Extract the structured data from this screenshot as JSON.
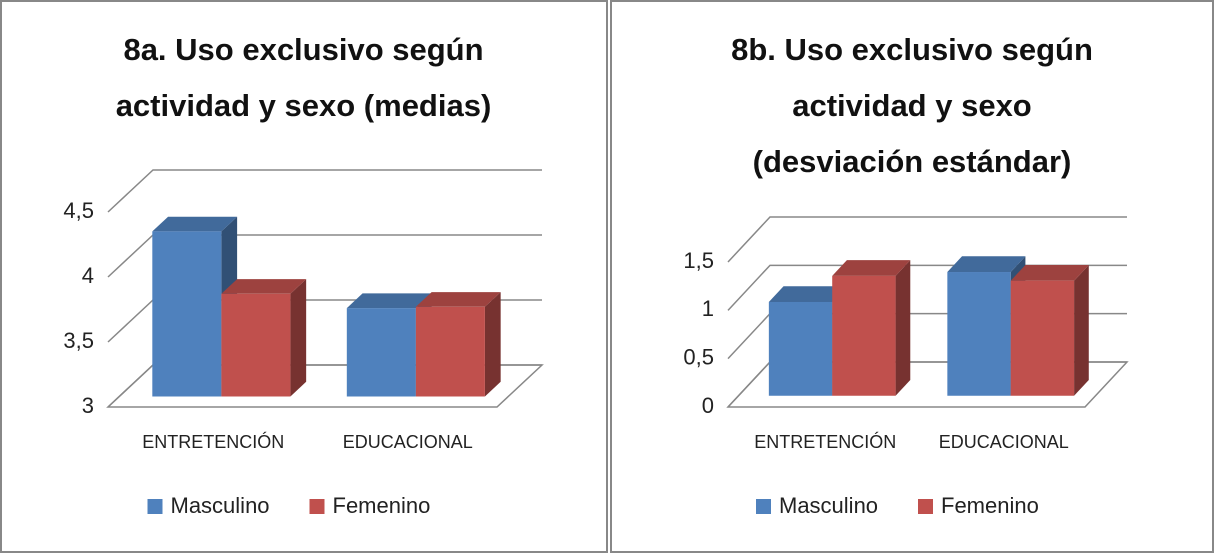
{
  "chart_data": [
    {
      "type": "bar3d",
      "title": "8a. Uso exclusivo según actividad y sexo (medias)",
      "categories": [
        "ENTRETENCIÓN",
        "EDUCACIONAL"
      ],
      "series": [
        {
          "name": "Masculino",
          "color": "#4f81bd",
          "values": [
            4.27,
            3.68
          ]
        },
        {
          "name": "Femenino",
          "color": "#c0504d",
          "values": [
            3.79,
            3.69
          ]
        }
      ],
      "ylim": [
        3,
        4.5
      ],
      "yticks": [
        3,
        {
          "value": 3.5,
          "label": "3,5"
        },
        4,
        {
          "value": 4.5,
          "label": "4,5"
        }
      ],
      "grid": true,
      "legend": "bottom"
    },
    {
      "type": "bar3d",
      "title": "8b. Uso exclusivo según actividad y sexo (desviación estándar)",
      "categories": [
        "ENTRETENCIÓN",
        "EDUCACIONAL"
      ],
      "series": [
        {
          "name": "Masculino",
          "color": "#4f81bd",
          "values": [
            0.97,
            1.28
          ]
        },
        {
          "name": "Femenino",
          "color": "#c0504d",
          "values": [
            1.24,
            1.19
          ]
        }
      ],
      "ylim": [
        0,
        1.5
      ],
      "yticks": [
        0,
        {
          "value": 0.5,
          "label": "0,5"
        },
        1,
        {
          "value": 1.5,
          "label": "1,5"
        }
      ],
      "grid": true,
      "legend": "bottom"
    }
  ]
}
